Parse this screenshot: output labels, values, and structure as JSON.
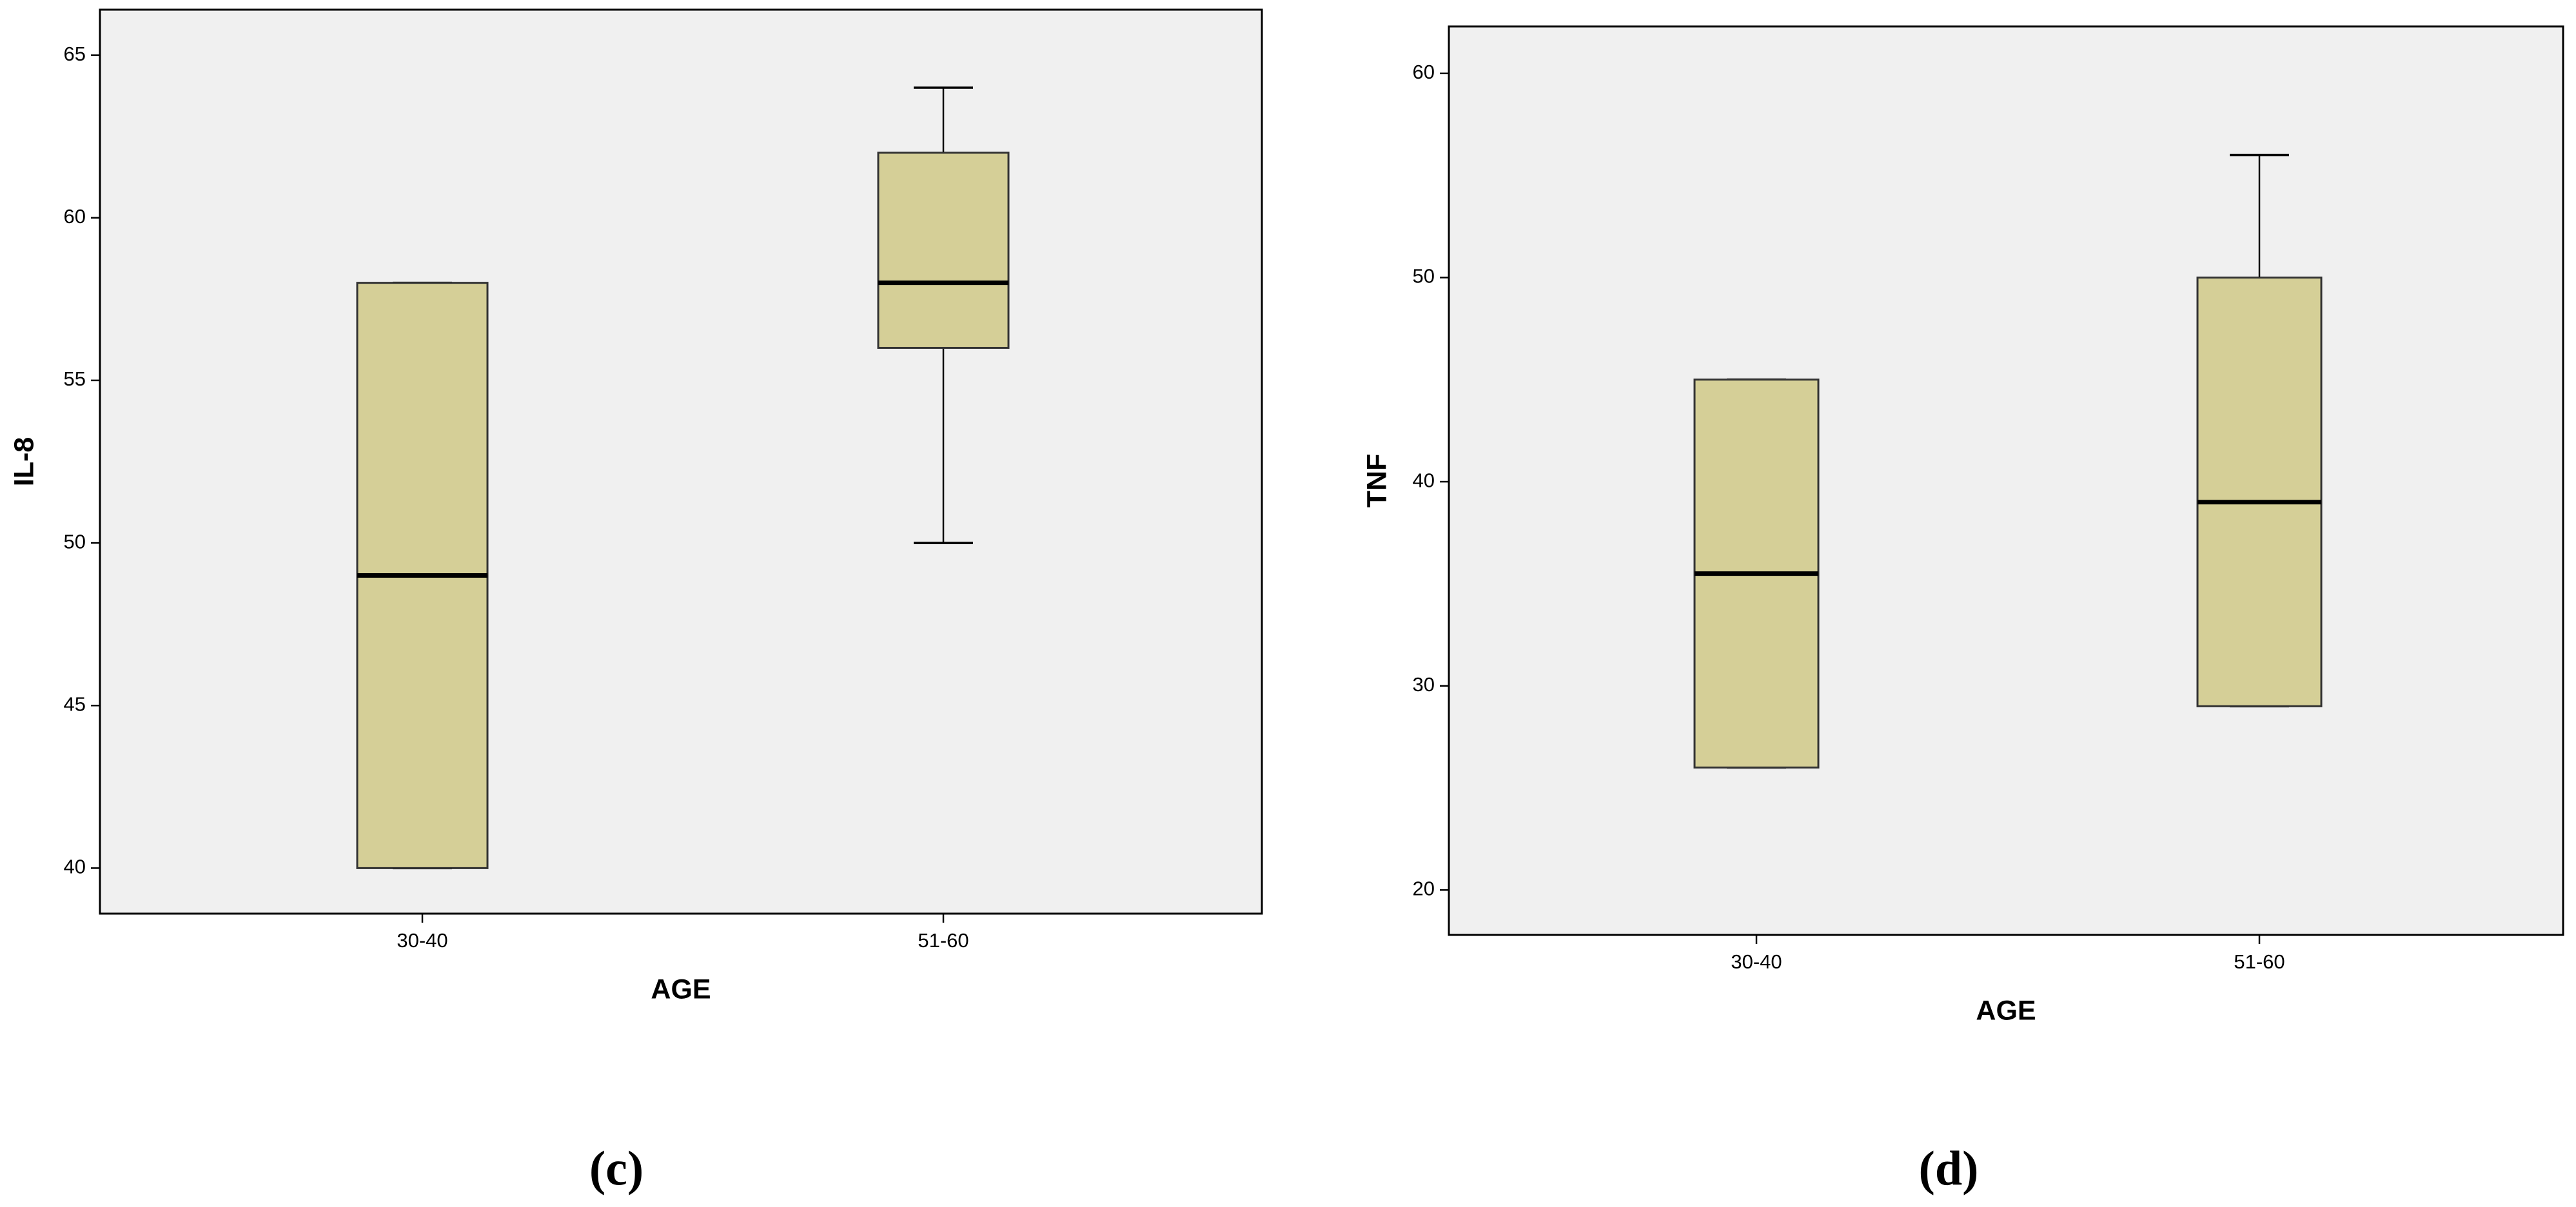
{
  "chart_data": [
    {
      "type": "box",
      "x_label": "AGE",
      "y_label": "IL-8",
      "panel_label": "(c)",
      "categories": [
        "30-40",
        "51-60"
      ],
      "series": [
        {
          "color": "#d5cf97",
          "min": [
            40,
            50
          ],
          "q1": [
            40,
            56
          ],
          "median": [
            49,
            58
          ],
          "q3": [
            58,
            62
          ],
          "max": [
            58,
            64
          ]
        }
      ],
      "ylim": [
        38.6,
        66.4
      ],
      "yticks": [
        40,
        45,
        50,
        55,
        60,
        65
      ]
    },
    {
      "type": "box",
      "x_label": "AGE",
      "y_label": "TNF",
      "panel_label": "(d)",
      "categories": [
        "30-40",
        "51-60"
      ],
      "series": [
        {
          "color": "#d5cf97",
          "min": [
            26,
            29
          ],
          "q1": [
            26,
            29
          ],
          "median": [
            35.5,
            39
          ],
          "q3": [
            45,
            50
          ],
          "max": [
            45,
            56
          ]
        }
      ],
      "ylim": [
        17.8,
        62.3
      ],
      "yticks": [
        20,
        30,
        40,
        50,
        60
      ]
    }
  ]
}
